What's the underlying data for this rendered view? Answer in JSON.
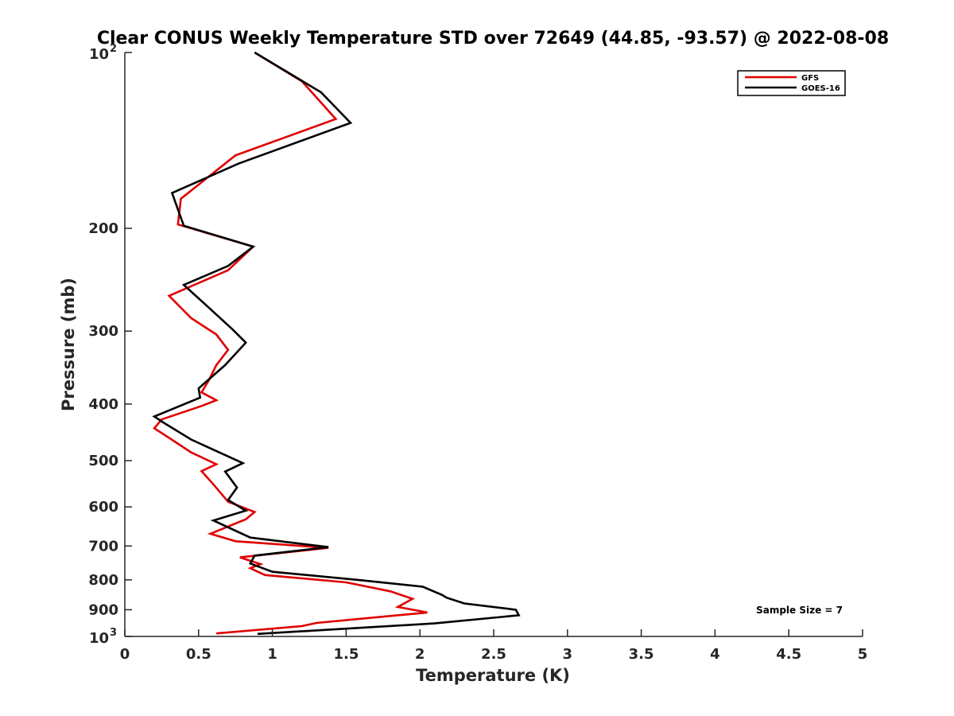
{
  "chart_data": {
    "type": "line",
    "title": "Clear CONUS Weekly Temperature STD over 72649 (44.85, -93.57) @ 2022-08-08",
    "xlabel": "Temperature (K)",
    "ylabel": "Pressure (mb)",
    "xlim": [
      0,
      5
    ],
    "ylim": [
      100,
      1000
    ],
    "y_scale": "log",
    "y_reversed": true,
    "grid": false,
    "legend_position": "top-right",
    "x_ticks": [
      "0",
      "0.5",
      "1",
      "1.5",
      "2",
      "2.5",
      "3",
      "3.5",
      "4",
      "4.5",
      "5"
    ],
    "y_ticks": [
      {
        "value": 100,
        "base": "10",
        "exp": "2"
      },
      {
        "value": 200,
        "label": "200"
      },
      {
        "value": 300,
        "label": "300"
      },
      {
        "value": 400,
        "label": "400"
      },
      {
        "value": 500,
        "label": "500"
      },
      {
        "value": 600,
        "label": "600"
      },
      {
        "value": 700,
        "label": "700"
      },
      {
        "value": 800,
        "label": "800"
      },
      {
        "value": 900,
        "label": "900"
      },
      {
        "value": 1000,
        "base": "10",
        "exp": "3"
      }
    ],
    "series": [
      {
        "name": "GFS",
        "color": "#e00000",
        "x": [
          0.88,
          1.2,
          1.43,
          0.75,
          0.38,
          0.36,
          0.87,
          0.7,
          0.3,
          0.45,
          0.62,
          0.7,
          0.62,
          0.57,
          0.52,
          0.62,
          0.52,
          0.25,
          0.2,
          0.3,
          0.45,
          0.62,
          0.52,
          0.6,
          0.7,
          0.88,
          0.82,
          0.58,
          0.75,
          1.38,
          0.78,
          0.92,
          0.85,
          0.95,
          1.5,
          1.8,
          1.95,
          1.85,
          2.05,
          1.3,
          1.2,
          0.62
        ],
        "y": [
          100,
          112,
          130,
          150,
          178,
          197,
          215,
          236,
          261,
          285,
          304,
          323,
          343,
          364,
          382,
          394,
          403,
          425,
          440,
          457,
          484,
          507,
          521,
          549,
          588,
          612,
          630,
          667,
          687,
          705,
          732,
          752,
          764,
          785,
          808,
          837,
          862,
          890,
          910,
          948,
          960,
          988
        ]
      },
      {
        "name": "GOES-16",
        "color": "#000000",
        "x": [
          0.88,
          1.33,
          1.53,
          0.77,
          0.32,
          0.4,
          0.87,
          0.7,
          0.4,
          0.6,
          0.73,
          0.82,
          0.68,
          0.5,
          0.51,
          0.2,
          0.26,
          0.45,
          0.8,
          0.68,
          0.76,
          0.7,
          0.82,
          0.6,
          0.85,
          1.38,
          0.88,
          0.85,
          1.0,
          1.58,
          2.02,
          2.15,
          2.18,
          2.3,
          2.65,
          2.67,
          2.1,
          0.9
        ],
        "y": [
          100,
          117,
          132,
          155,
          174,
          198,
          215,
          232,
          250,
          278,
          298,
          314,
          343,
          376,
          390,
          420,
          430,
          460,
          505,
          522,
          556,
          584,
          609,
          633,
          677,
          703,
          727,
          750,
          775,
          800,
          822,
          849,
          858,
          878,
          900,
          920,
          950,
          990
        ]
      }
    ],
    "annotations": [
      "Sample Size = 7"
    ]
  }
}
